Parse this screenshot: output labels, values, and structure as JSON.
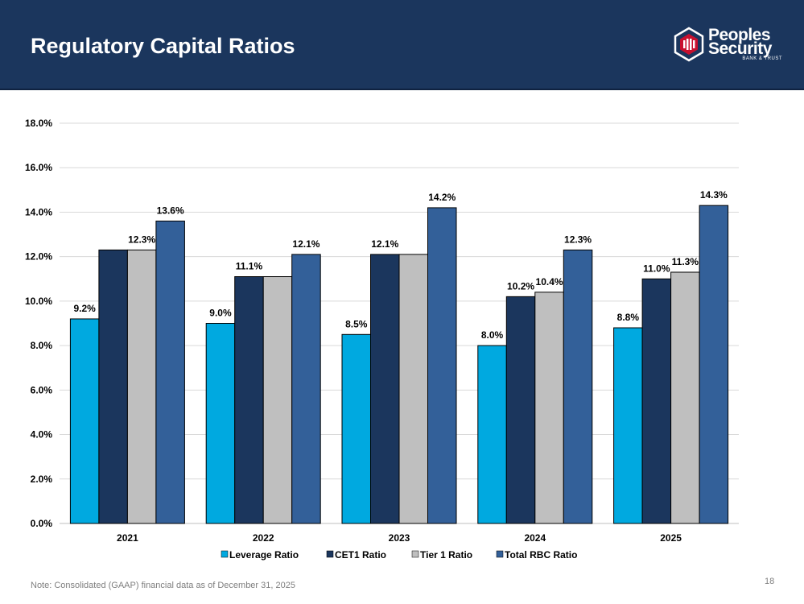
{
  "header": {
    "title": "Regulatory Capital Ratios"
  },
  "logo": {
    "name_line1": "Peoples",
    "name_line2": "Security",
    "tagline": "BANK & TRUST"
  },
  "colors": {
    "header_bg": "#1b365d",
    "leverage": "#00a9e0",
    "cet1": "#1b365d",
    "tier1": "#bfbfbf",
    "total_rbc": "#336099",
    "logo_red": "#c8102e"
  },
  "chart_data": {
    "type": "bar",
    "categories": [
      "2021",
      "2022",
      "2023",
      "2024",
      "2025"
    ],
    "series": [
      {
        "name": "Leverage Ratio",
        "values": [
          9.2,
          9.0,
          8.5,
          8.0,
          8.8
        ],
        "labels": [
          "9.2%",
          "9.0%",
          "8.5%",
          "8.0%",
          "8.8%"
        ]
      },
      {
        "name": "CET1 Ratio",
        "values": [
          12.3,
          11.1,
          12.1,
          10.2,
          11.0
        ],
        "labels": [
          "",
          "11.1%",
          "12.1%",
          "10.2%",
          "11.0%"
        ]
      },
      {
        "name": "Tier 1 Ratio",
        "values": [
          12.3,
          11.1,
          12.1,
          10.4,
          11.3
        ],
        "labels": [
          "12.3%",
          "",
          "",
          "10.4%",
          "11.3%"
        ]
      },
      {
        "name": "Total RBC Ratio",
        "values": [
          13.6,
          12.1,
          14.2,
          12.3,
          14.3
        ],
        "labels": [
          "13.6%",
          "12.1%",
          "14.2%",
          "12.3%",
          "14.3%"
        ]
      }
    ],
    "ylim": [
      0,
      18
    ],
    "yticks": [
      "0.0%",
      "2.0%",
      "4.0%",
      "6.0%",
      "8.0%",
      "10.0%",
      "12.0%",
      "14.0%",
      "16.0%",
      "18.0%"
    ],
    "grid": true,
    "legend": "bottom"
  },
  "footer": {
    "note": "Note: Consolidated (GAAP) financial data as of December 31, 2025",
    "page_number": "18"
  }
}
